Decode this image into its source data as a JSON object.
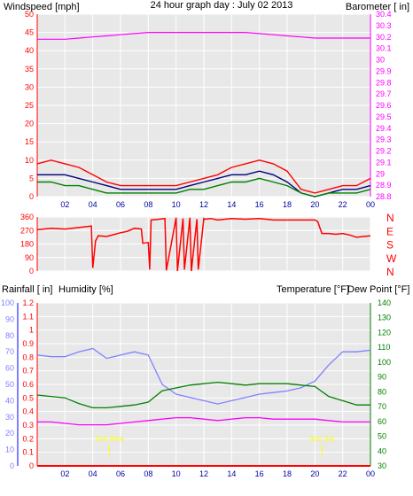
{
  "title": "24 hour graph day : July 02 2013",
  "colors": {
    "background": "#ffffff",
    "plot_bg": "#e8e8e8",
    "grid": "#ffffff",
    "wind": "#ff0000",
    "wind_avg": "#000080",
    "wind_dir_avg": "#008000",
    "barometer": "#ff00ff",
    "rain": "#ff0000",
    "humidity": "#8080ff",
    "temperature": "#008000",
    "dew_point": "#ff00ff",
    "title": "#0000c0",
    "sunrise": "#ffff00"
  },
  "x_ticks": [
    "02",
    "04",
    "06",
    "08",
    "10",
    "12",
    "14",
    "16",
    "18",
    "20",
    "22",
    "00"
  ],
  "chart_data": [
    {
      "type": "line",
      "panel": "wind_barometer",
      "left_axis": {
        "label": "Windspeed [mph]",
        "ticks": [
          "0",
          "5",
          "10",
          "15",
          "20",
          "25",
          "30",
          "35",
          "40",
          "45",
          "50"
        ],
        "range": [
          0,
          50
        ]
      },
      "right_axis": {
        "label": "Barometer [ in]",
        "ticks": [
          "28.8",
          "28.9",
          "29",
          "29.1",
          "29.2",
          "29.3",
          "29.4",
          "29.5",
          "29.6",
          "29.7",
          "29.8",
          "29.9",
          "30",
          "30.1",
          "30.2",
          "30.3",
          "30.4"
        ],
        "range": [
          28.8,
          30.4
        ]
      },
      "x": [
        0,
        1,
        2,
        3,
        4,
        5,
        6,
        7,
        8,
        9,
        10,
        11,
        12,
        13,
        14,
        15,
        16,
        17,
        18,
        19,
        20,
        21,
        22,
        23,
        24
      ],
      "series": [
        {
          "axis": "right",
          "values": [
            30.18,
            30.18,
            30.18,
            30.19,
            30.2,
            30.21,
            30.22,
            30.23,
            30.24,
            30.24,
            30.24,
            30.24,
            30.24,
            30.24,
            30.24,
            30.24,
            30.23,
            30.22,
            30.21,
            30.2,
            30.19,
            30.19,
            30.19,
            30.19,
            30.19
          ]
        },
        {
          "axis": "left",
          "values": [
            9,
            10,
            9,
            8,
            6,
            4,
            3,
            3,
            3,
            3,
            3,
            4,
            5,
            6,
            8,
            9,
            10,
            9,
            7,
            2,
            1,
            2,
            3,
            3,
            5
          ]
        },
        {
          "axis": "left",
          "values": [
            6,
            6,
            6,
            5,
            4,
            3,
            2,
            2,
            2,
            2,
            2,
            3,
            4,
            5,
            6,
            6,
            7,
            6,
            4,
            1,
            0,
            1,
            2,
            2,
            3
          ]
        },
        {
          "axis": "left",
          "values": [
            4,
            4,
            3,
            3,
            2,
            1,
            1,
            1,
            1,
            1,
            1,
            2,
            2,
            3,
            4,
            4,
            5,
            4,
            3,
            1,
            0,
            1,
            1,
            1,
            2
          ]
        }
      ]
    },
    {
      "type": "line",
      "panel": "wind_direction",
      "left_axis": {
        "ticks": [
          "0",
          "90",
          "180",
          "270",
          "360"
        ],
        "range": [
          0,
          360
        ]
      },
      "right_axis": {
        "ticks": [
          "N",
          "W",
          "S",
          "E",
          "N"
        ]
      },
      "x": [
        0,
        1,
        2,
        3,
        3.9,
        4.0,
        4.2,
        4.4,
        5,
        6,
        6.5,
        7,
        7.5,
        7.6,
        8.0,
        8.1,
        8.2,
        9.2,
        9.3,
        10,
        10.1,
        10.5,
        10.6,
        11,
        11.1,
        11.5,
        11.6,
        12,
        12.1,
        12.5,
        13,
        14,
        15,
        16,
        16.5,
        17,
        17.5,
        18,
        18.5,
        19,
        19.5,
        20,
        20.2,
        20.5,
        21,
        21.5,
        22,
        22.5,
        23,
        23.5,
        24
      ],
      "series": [
        {
          "values": [
            275,
            285,
            280,
            290,
            300,
            20,
            200,
            235,
            230,
            255,
            265,
            285,
            280,
            185,
            190,
            10,
            340,
            350,
            5,
            355,
            0,
            350,
            10,
            355,
            0,
            345,
            10,
            350,
            345,
            350,
            340,
            350,
            345,
            350,
            345,
            340,
            340,
            340,
            340,
            340,
            340,
            340,
            330,
            250,
            250,
            245,
            250,
            240,
            225,
            230,
            235
          ]
        }
      ]
    },
    {
      "type": "line",
      "panel": "rain_humidity_temperature",
      "left_axis": {
        "label": "Rainfall [ in]",
        "ticks": [
          "0",
          "0.1",
          "0.2",
          "0.3",
          "0.4",
          "0.5",
          "0.6",
          "0.7",
          "0.8",
          "0.9",
          "1",
          "1.1",
          "1.2"
        ],
        "range": [
          0,
          1.2
        ]
      },
      "humidity_axis": {
        "label": "Humidity [%]",
        "ticks": [
          "0",
          "10",
          "20",
          "30",
          "40",
          "50",
          "60",
          "70",
          "80",
          "90",
          "100"
        ],
        "range": [
          0,
          100
        ]
      },
      "right_axis": {
        "label": "Temperature [°F]",
        "label2": "Dew Point [°F]",
        "ticks": [
          "30",
          "40",
          "50",
          "60",
          "70",
          "80",
          "90",
          "100",
          "110",
          "120",
          "130",
          "140"
        ],
        "range": [
          30,
          145
        ]
      },
      "x": [
        0,
        1,
        2,
        3,
        4,
        5,
        6,
        7,
        8,
        9,
        10,
        11,
        12,
        13,
        14,
        15,
        16,
        17,
        18,
        19,
        20,
        21,
        22,
        23,
        24
      ],
      "series": [
        {
          "axis": "humidity",
          "values": [
            68,
            67,
            67,
            70,
            72,
            66,
            68,
            70,
            68,
            50,
            44,
            42,
            40,
            38,
            40,
            42,
            44,
            45,
            46,
            48,
            52,
            62,
            70,
            70,
            71
          ]
        },
        {
          "axis": "right",
          "values": [
            80,
            79,
            78,
            74,
            71,
            71,
            72,
            73,
            75,
            83,
            85,
            87,
            88,
            89,
            88,
            87,
            88,
            88,
            88,
            87,
            86,
            79,
            76,
            73,
            73
          ]
        },
        {
          "axis": "right",
          "values": [
            61,
            61,
            60,
            59,
            59,
            59,
            60,
            61,
            62,
            63,
            64,
            64,
            63,
            62,
            63,
            64,
            64,
            63,
            63,
            63,
            63,
            62,
            61,
            61,
            61
          ]
        },
        {
          "axis": "left",
          "values": [
            0,
            0,
            0,
            0,
            0,
            0,
            0,
            0,
            0,
            0,
            0,
            0,
            0,
            0,
            0,
            0,
            0,
            0,
            0,
            0,
            0,
            0,
            0,
            0,
            0
          ]
        }
      ],
      "annotations": [
        {
          "text": "Sun Rise",
          "x": 5.2
        },
        {
          "text": "Sun Set",
          "x": 20.5
        }
      ]
    }
  ]
}
